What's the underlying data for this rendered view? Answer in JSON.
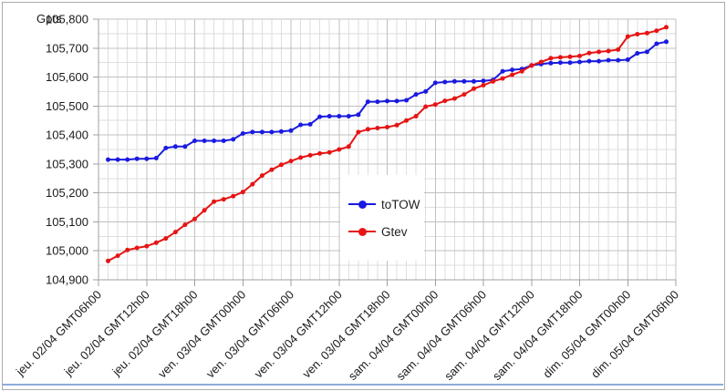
{
  "window": {
    "background_color": "#ffffff",
    "border_color": "#ababab"
  },
  "decor": {
    "bottom_line_color": "#8faadc"
  },
  "y_axis": {
    "unit_label": "Gpts",
    "tick_labels": [
      "105,800",
      "105,700",
      "105,600",
      "105,500",
      "105,400",
      "105,300",
      "105,200",
      "105,100",
      "105,000",
      "104,900"
    ]
  },
  "chart_data": {
    "type": "line",
    "title": "",
    "ylabel": "Gpts",
    "xlabel": "",
    "grid": true,
    "legend_position": "inside-center",
    "ylim": [
      104900,
      105800
    ],
    "y_major_step": 100,
    "y_minor_step": 50,
    "x_minor_per_major": 5,
    "x_tick_labels": [
      "jeu. 02/04 GMT06h00",
      "jeu. 02/04 GMT12h00",
      "jeu. 02/04 GMT18h00",
      "ven. 03/04 GMT00h00",
      "ven. 03/04 GMT06h00",
      "ven. 03/04 GMT12h00",
      "ven. 03/04 GMT18h00",
      "sam. 04/04 GMT00h00",
      "sam. 04/04 GMT06h00",
      "sam. 04/04 GMT12h00",
      "sam. 04/04 GMT18h00",
      "dim. 05/04 GMT00h00",
      "dim. 05/04 GMT06h00"
    ],
    "colors": {
      "major_grid": "#c0c0c0",
      "minor_grid": "#dedede",
      "axis": "#a0a0a0",
      "tick_text": "#1a1a1a"
    },
    "series": [
      {
        "name": "toTOW",
        "color": "#1a1ae0",
        "values": [
          105315,
          105315,
          105315,
          105318,
          105318,
          105320,
          105355,
          105360,
          105360,
          105380,
          105380,
          105380,
          105380,
          105385,
          105405,
          105410,
          105410,
          105410,
          105412,
          105415,
          105435,
          105437,
          105463,
          105465,
          105465,
          105465,
          105470,
          105515,
          105515,
          105517,
          105517,
          105520,
          105540,
          105550,
          105580,
          105583,
          105585,
          105585,
          105585,
          105587,
          105590,
          105620,
          105625,
          105628,
          105640,
          105645,
          105648,
          105650,
          105650,
          105652,
          105655,
          105655,
          105658,
          105658,
          105660,
          105682,
          105687,
          105715,
          105722
        ]
      },
      {
        "name": "Gtev",
        "color": "#e61414",
        "values": [
          104965,
          104983,
          105003,
          105010,
          105016,
          105028,
          105043,
          105065,
          105090,
          105110,
          105140,
          105170,
          105178,
          105189,
          105203,
          105230,
          105260,
          105280,
          105297,
          105310,
          105322,
          105330,
          105336,
          105340,
          105350,
          105360,
          105410,
          105420,
          105424,
          105427,
          105434,
          105450,
          105465,
          105498,
          105505,
          105518,
          105526,
          105540,
          105560,
          105572,
          105585,
          105595,
          105608,
          105620,
          105640,
          105652,
          105665,
          105668,
          105670,
          105673,
          105683,
          105687,
          105690,
          105695,
          105740,
          105748,
          105752,
          105760,
          105772
        ]
      }
    ]
  }
}
